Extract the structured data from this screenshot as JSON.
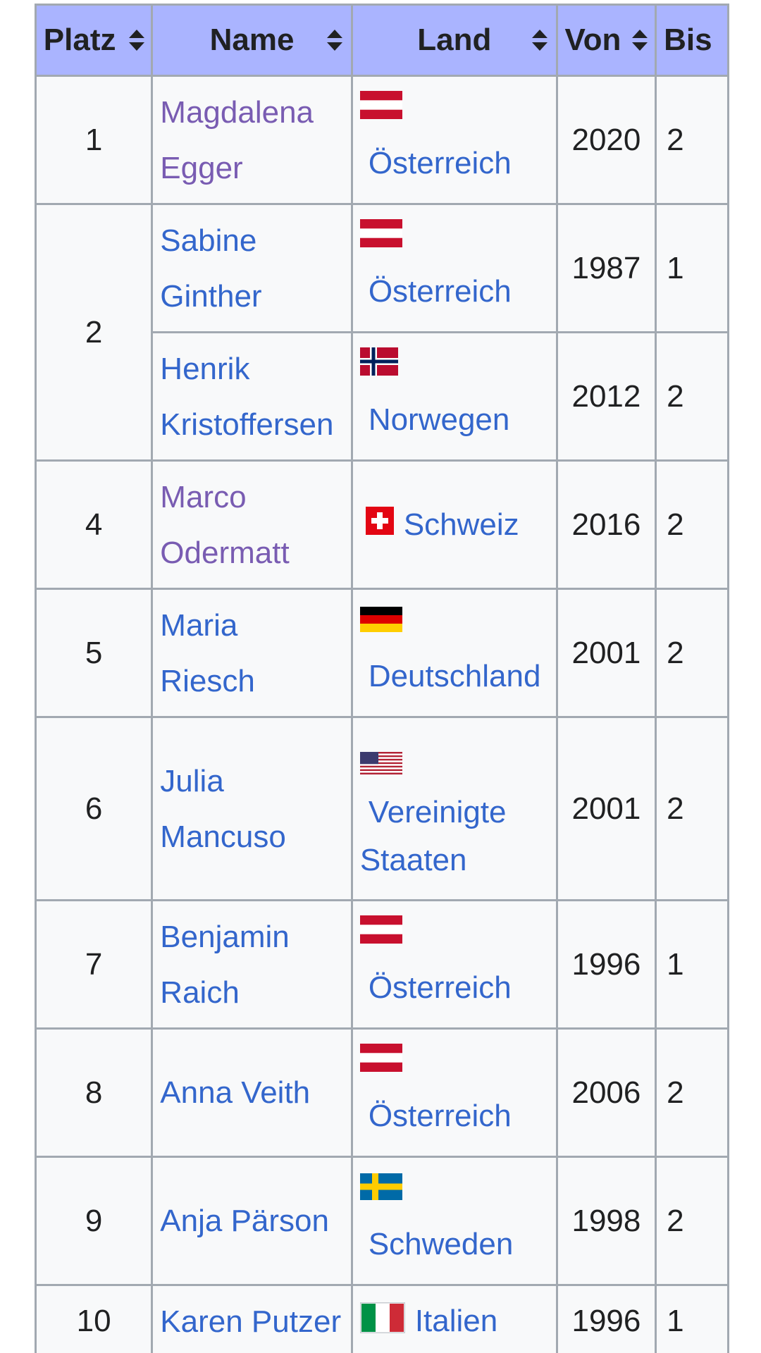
{
  "columns": {
    "platz": "Platz",
    "name": "Name",
    "land": "Land",
    "von": "Von",
    "bis": "Bis"
  },
  "rows": [
    {
      "platz": "1",
      "name": [
        "Magdalena",
        "Egger"
      ],
      "land": "Österreich",
      "flag": "austria-flag",
      "von": "2020",
      "bis": "2",
      "visited": true
    },
    {
      "platz": "2",
      "name": [
        "Sabine",
        "Ginther"
      ],
      "land": "Österreich",
      "flag": "austria-flag",
      "von": "1987",
      "bis": "1"
    },
    {
      "platz": "",
      "name": [
        "Henrik",
        "Kristoffersen"
      ],
      "land": "Norwegen",
      "flag": "norway-flag",
      "von": "2012",
      "bis": "2"
    },
    {
      "platz": "4",
      "name": [
        "Marco",
        "Odermatt"
      ],
      "land": "Schweiz",
      "flag": "switzerland-flag",
      "von": "2016",
      "bis": "2",
      "visited": true
    },
    {
      "platz": "5",
      "name": [
        "Maria",
        "Riesch"
      ],
      "land": "Deutschland",
      "flag": "germany-flag",
      "von": "2001",
      "bis": "2"
    },
    {
      "platz": "6",
      "name": [
        "Julia",
        "Mancuso"
      ],
      "land": [
        "Vereinigte",
        "Staaten"
      ],
      "flag": "usa-flag",
      "von": "2001",
      "bis": "2"
    },
    {
      "platz": "7",
      "name": [
        "Benjamin",
        "Raich"
      ],
      "land": "Österreich",
      "flag": "austria-flag",
      "von": "1996",
      "bis": "1"
    },
    {
      "platz": "8",
      "name": "Anna Veith",
      "land": "Österreich",
      "flag": "austria-flag",
      "von": "2006",
      "bis": "2"
    },
    {
      "platz": "9",
      "name": "Anja Pärson",
      "land": "Schweden",
      "flag": "sweden-flag",
      "von": "1998",
      "bis": "2"
    },
    {
      "platz": "10",
      "name": "Karen Putzer",
      "land": "Italien",
      "flag": "italy-flag",
      "von": "1996",
      "bis": "1"
    }
  ],
  "colors": {
    "header_bg": "#aab4ff",
    "cell_bg": "#f8f9fa",
    "border": "#a2a9b1",
    "link": "#3366cc",
    "visited_link": "#795cb2"
  }
}
